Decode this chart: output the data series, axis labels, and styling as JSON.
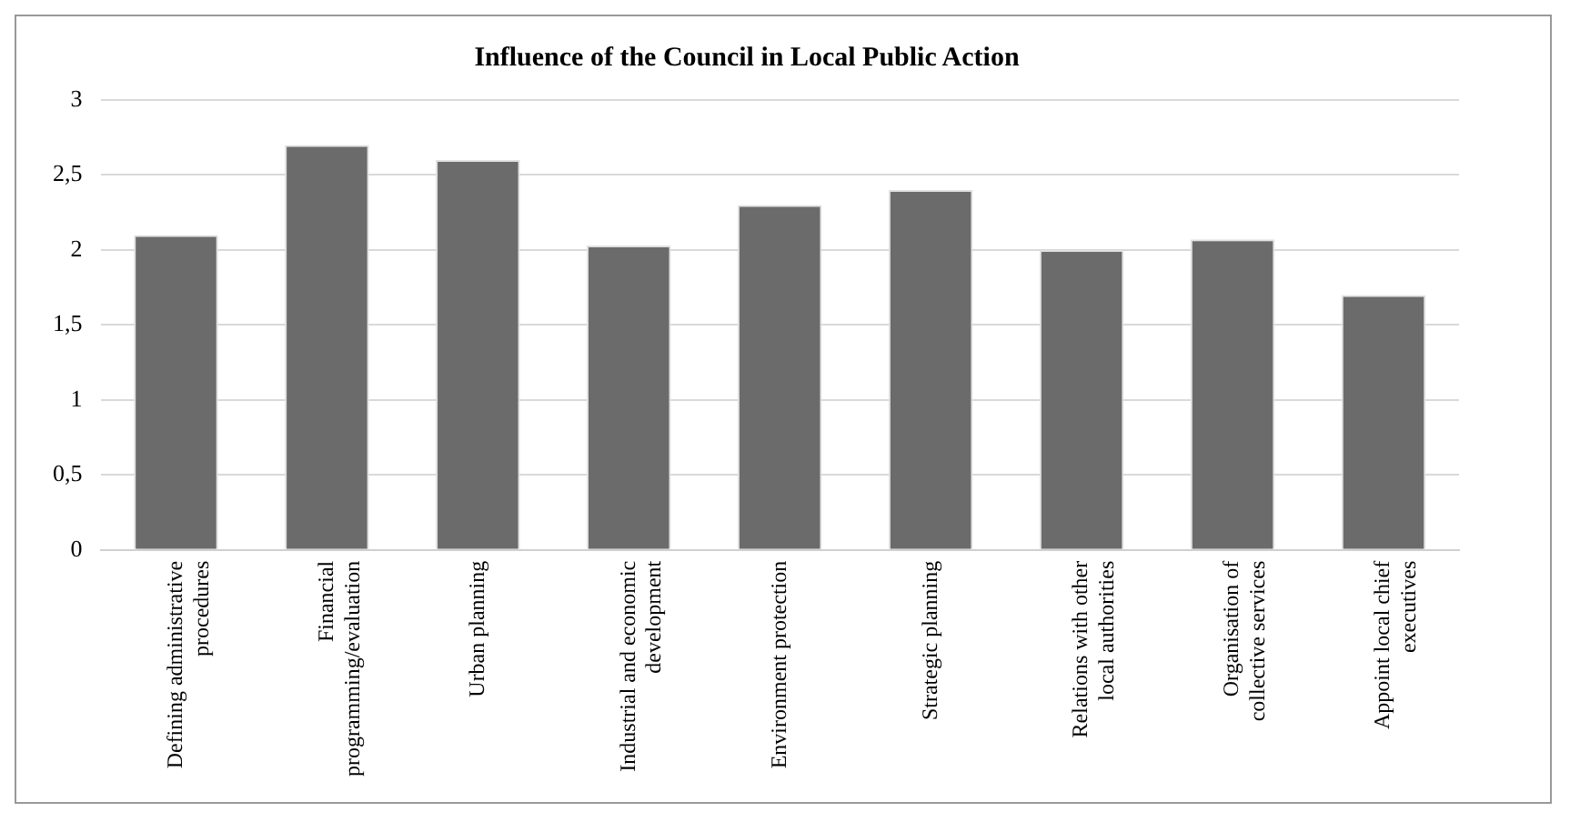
{
  "chart_data": {
    "type": "bar",
    "title": "Influence of the Council in Local Public Action",
    "categories": [
      "Defining administrative procedures",
      "Financial programming/evaluation",
      "Urban planning",
      "Industrial and economic development",
      "Environment protection",
      "Strategic planning",
      "Relations with other local authorities",
      "Organisation of collective services",
      "Appoint local chief executives"
    ],
    "values": [
      2.1,
      2.7,
      2.6,
      2.03,
      2.3,
      2.4,
      2.0,
      2.07,
      1.7
    ],
    "color": "#6b6b6b",
    "ylim": [
      0,
      3
    ],
    "yticks": [
      0,
      {
        "value": 0.5,
        "label": "0,5"
      },
      1,
      {
        "value": 1.5,
        "label": "1,5"
      },
      2,
      {
        "value": 2.5,
        "label": "2,5"
      },
      3
    ],
    "grid": "y",
    "legend": false
  }
}
